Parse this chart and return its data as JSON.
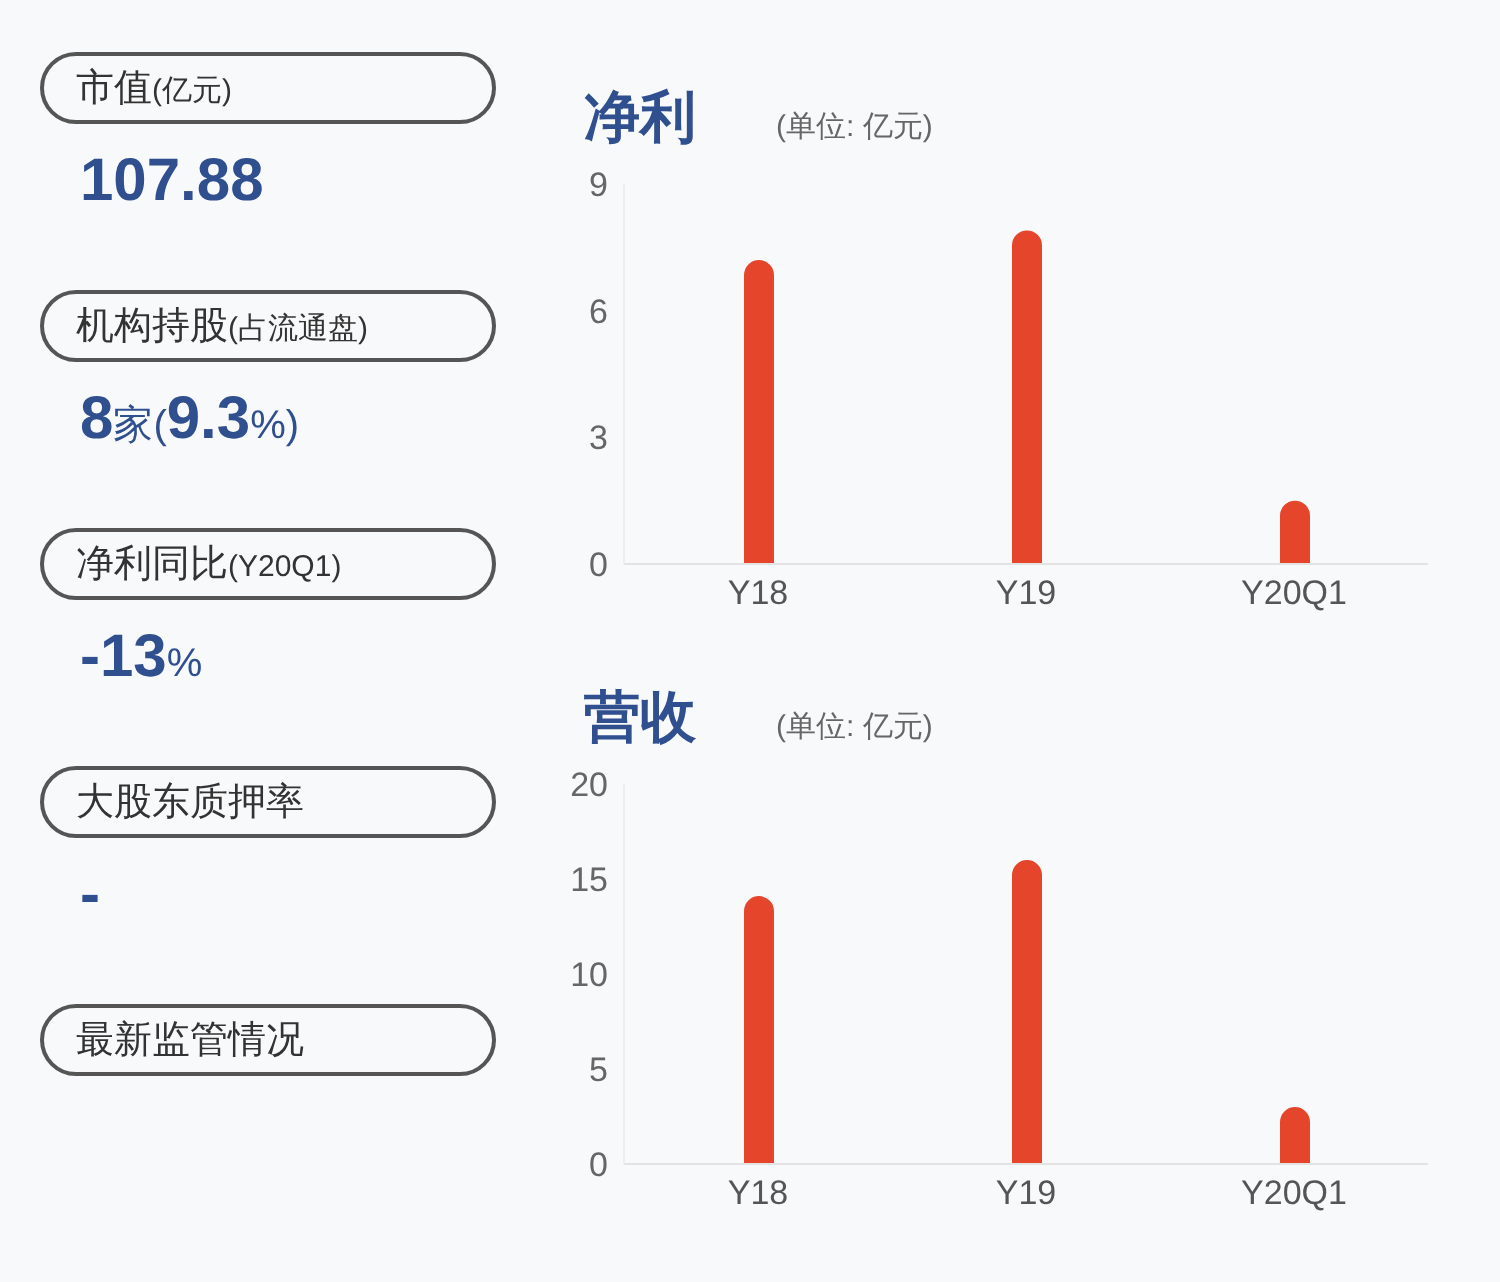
{
  "chart_data": [
    {
      "type": "other",
      "annotations": [
        "市值(亿元)",
        "107.88",
        "机构持股(占流通盘)",
        "8家(9.3%)",
        "净利同比(Y20Q1)",
        "-13%",
        "大股东质押率",
        "-",
        "最新监管情况"
      ]
    },
    {
      "type": "bar",
      "title": "净利",
      "subtitle": "(单位: 亿元)",
      "categories": [
        "Y18",
        "Y19",
        "Y20Q1"
      ],
      "values": [
        7.2,
        7.9,
        1.5
      ],
      "color": "#e5452a",
      "ylim": [
        0,
        9
      ],
      "yticks": [
        0,
        3,
        6,
        9
      ],
      "grid": false
    },
    {
      "type": "bar",
      "title": "营收",
      "subtitle": "(单位: 亿元)",
      "categories": [
        "Y18",
        "Y19",
        "Y20Q1"
      ],
      "values": [
        14.1,
        16.0,
        3.0
      ],
      "color": "#e5452a",
      "ylim": [
        0,
        20
      ],
      "yticks": [
        0,
        5,
        10,
        15,
        20
      ],
      "grid": false
    }
  ]
}
